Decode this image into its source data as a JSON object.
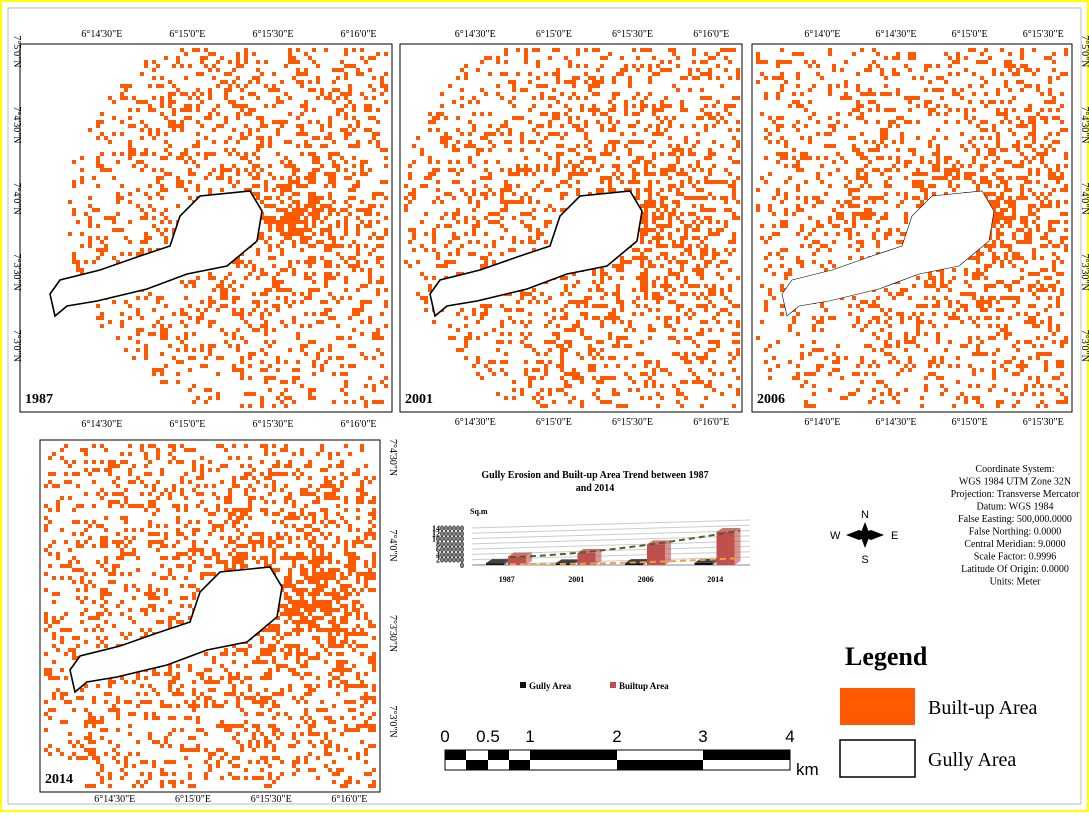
{
  "maps": [
    {
      "year": "1987",
      "top_ticks": [
        "6°14'30\"E",
        "6°15'0\"E",
        "6°15'30\"E",
        "6°16'0\"E"
      ],
      "bottom_ticks": [
        "6°14'30\"E",
        "6°15'0\"E",
        "6°15'30\"E",
        "6°16'0\"E"
      ],
      "lat_ticks": [
        "7°5'0\"N",
        "7°4'30\"N",
        "7°4'0\"N",
        "7°3'30\"N",
        "7°3'0\"N"
      ]
    },
    {
      "year": "2001",
      "top_ticks": [
        "6°14'30\"E",
        "6°15'0\"E",
        "6°15'30\"E",
        "6°16'0\"E"
      ],
      "bottom_ticks": [
        "6°14'30\"E",
        "6°15'0\"E",
        "6°15'30\"E",
        "6°16'0\"E"
      ]
    },
    {
      "year": "2006",
      "top_ticks": [
        "6°14'0\"E",
        "6°14'30\"E",
        "6°15'0\"E",
        "6°15'30\"E"
      ],
      "bottom_ticks": [
        "6°14'0\"E",
        "6°14'30\"E",
        "6°15'0\"E",
        "6°15'30\"E"
      ],
      "lat_ticks": [
        "7°5'0\"N",
        "7°4'30\"N",
        "7°4'0\"N",
        "7°3'30\"N",
        "7°3'0\"N"
      ]
    },
    {
      "year": "2014",
      "bottom_ticks": [
        "6°14'30\"E",
        "6°15'0\"E",
        "6°15'30\"E",
        "6°16'0\"E"
      ],
      "lat_ticks": [
        "7°4'30\"N",
        "7°4'0\"N",
        "7°3'30\"N",
        "7°3'0\"N"
      ]
    }
  ],
  "chart_data": {
    "type": "bar",
    "title": "Gully Erosion and Built-up Area Trend between 1987 and 2014",
    "y_label": "Sq.m",
    "categories": [
      "1987",
      "2001",
      "2006",
      "2014"
    ],
    "series": [
      {
        "name": "Gully Area",
        "color": "#111111",
        "values": [
          700000,
          600000,
          700000,
          800000
        ]
      },
      {
        "name": "Builtup Area",
        "color": "#c0504d",
        "values": [
          3200000,
          4600000,
          7800000,
          12500000
        ]
      }
    ],
    "ylim": [
      0,
      14000000
    ],
    "yticks": [
      0,
      2000000,
      4000000,
      6000000,
      8000000,
      10000000,
      12000000,
      14000000
    ],
    "grid": true
  },
  "info": {
    "lines": [
      "Coordinate System:",
      "WGS 1984 UTM Zone 32N",
      "Projection: Transverse Mercator",
      "Datum: WGS 1984",
      "False Easting: 500,000.0000",
      "False Northing: 0.0000",
      "Central Meridian: 9.0000",
      "Scale Factor: 0.9996",
      "Latitude Of Origin: 0.0000",
      "Units: Meter"
    ]
  },
  "compass": {
    "n": "N",
    "s": "S",
    "e": "E",
    "w": "W"
  },
  "scale_bar": {
    "labels": [
      "0",
      "0.5",
      "1",
      "2",
      "3",
      "4"
    ],
    "unit": "km"
  },
  "legend": {
    "title": "Legend",
    "items": [
      "Built-up Area",
      "Gully Area"
    ]
  }
}
